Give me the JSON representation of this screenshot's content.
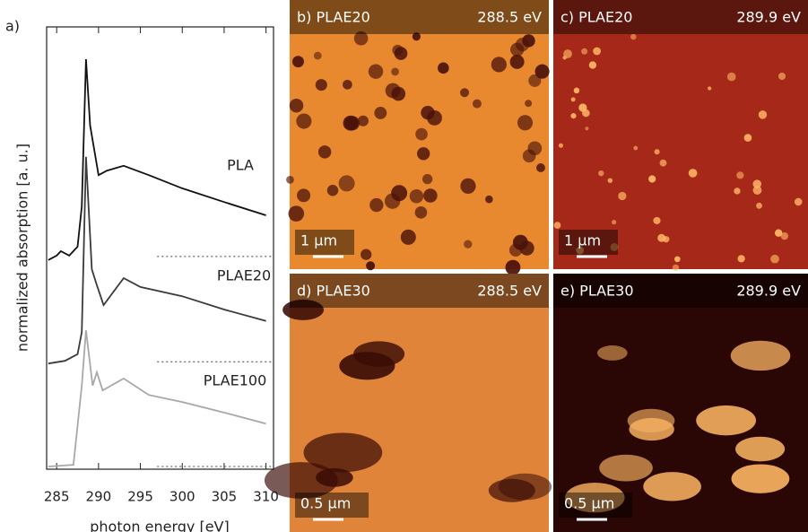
{
  "panel_label": "a)",
  "chart_data": {
    "type": "line",
    "y_label": "normalized absorption [a. u.]",
    "x_label": "photon energy [eV]",
    "xlim": [
      283.8,
      310.9
    ],
    "xticks": [
      285,
      290,
      295,
      300,
      305,
      310
    ],
    "ylim": [
      0,
      10
    ],
    "series": [
      {
        "name": "PLA",
        "color": "#111111",
        "x": [
          284,
          285,
          285.5,
          286.5,
          287.5,
          288,
          288.5,
          289,
          290,
          291,
          293,
          296,
          300,
          305,
          310
        ],
        "values": [
          4.73,
          4.83,
          4.93,
          4.83,
          5.03,
          5.94,
          9.27,
          7.77,
          6.65,
          6.75,
          6.86,
          6.65,
          6.35,
          6.04,
          5.74
        ]
      },
      {
        "name": "PLAE20",
        "color": "#3a3a3a",
        "x": [
          284,
          286,
          287.5,
          288,
          288.5,
          289.2,
          289.8,
          290.6,
          293,
          295,
          300,
          305,
          310
        ],
        "values": [
          2.39,
          2.45,
          2.6,
          3.1,
          7.06,
          4.52,
          4.16,
          3.71,
          4.32,
          4.12,
          3.91,
          3.61,
          3.35
        ]
      },
      {
        "name": "PLAE100",
        "color": "#a8a8a8",
        "x": [
          284,
          287,
          288,
          288.5,
          289.3,
          289.8,
          290.5,
          293,
          296,
          300,
          305,
          310
        ],
        "values": [
          0.06,
          0.1,
          1.89,
          3.14,
          1.89,
          2.19,
          1.78,
          2.05,
          1.68,
          1.52,
          1.28,
          1.03
        ]
      }
    ],
    "baselines": {
      "x_start": 297,
      "values": [
        4.81,
        2.43,
        0.06
      ]
    }
  },
  "images": [
    {
      "label": "b)  PLAE20",
      "energy": "288.5 eV",
      "scale": "1 µm"
    },
    {
      "label": "c)  PLAE20",
      "energy": "289.9 eV",
      "scale": "1 µm"
    },
    {
      "label": "d)  PLAE30",
      "energy": "288.5 eV",
      "scale": "0.5 µm"
    },
    {
      "label": "e)  PLAE30",
      "energy": "289.9 eV",
      "scale": "0.5 µm"
    }
  ]
}
